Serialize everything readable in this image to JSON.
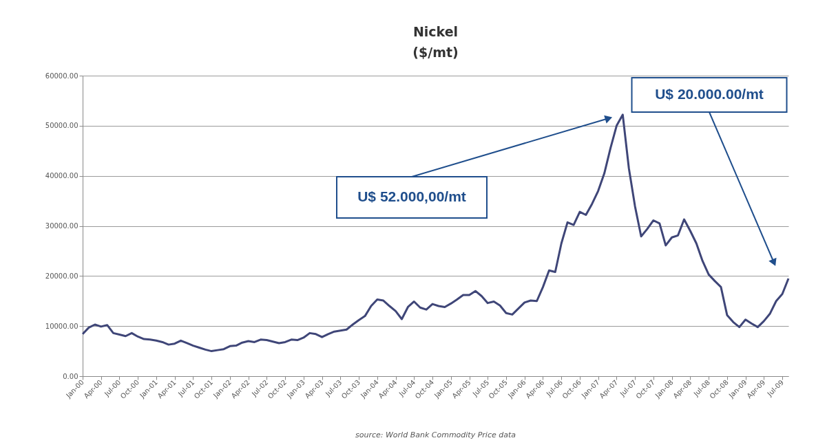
{
  "chart_data": {
    "type": "line",
    "title": "Nickel\n($/mt)",
    "categories": [
      "Jan-00",
      null,
      null,
      "Apr-00",
      null,
      null,
      "Jul-00",
      null,
      null,
      "Oct-00",
      null,
      null,
      "Jan-01",
      null,
      null,
      "Apr-01",
      null,
      null,
      "Jul-01",
      null,
      null,
      "Oct-01",
      null,
      null,
      "Jan-02",
      null,
      null,
      "Apr-02",
      null,
      null,
      "Jul-02",
      null,
      null,
      "Oct-02",
      null,
      null,
      "Jan-03",
      null,
      null,
      "Apr-03",
      null,
      null,
      "Jul-03",
      null,
      null,
      "Oct-03",
      null,
      null,
      "Jan-04",
      null,
      null,
      "Apr-04",
      null,
      null,
      "Jul-04",
      null,
      null,
      "Oct-04",
      null,
      null,
      "Jan-05",
      null,
      null,
      "Apr-05",
      null,
      null,
      "Jul-05",
      null,
      null,
      "Oct-05",
      null,
      null,
      "Jan-06",
      null,
      null,
      "Apr-06",
      null,
      null,
      "Jul-06",
      null,
      null,
      "Oct-06",
      null,
      null,
      "Jan-07",
      null,
      null,
      "Apr-07",
      null,
      null,
      "Jul-07",
      null,
      null,
      "Oct-07",
      null,
      null,
      "Jan-08",
      null,
      null,
      "Apr-08",
      null,
      null,
      "Jul-08",
      null,
      null,
      "Oct-08",
      null,
      null,
      "Jan-09",
      null,
      null,
      "Apr-09",
      null,
      null,
      "Jul-09",
      null
    ],
    "series": [
      {
        "color": "#3f4678",
        "values": [
          8400,
          9700,
          10300,
          9900,
          10200,
          8600,
          8300,
          8000,
          8600,
          7900,
          7400,
          7300,
          7100,
          6800,
          6300,
          6500,
          7100,
          6600,
          6100,
          5700,
          5300,
          5000,
          5200,
          5400,
          6000,
          6100,
          6700,
          7000,
          6800,
          7300,
          7200,
          6900,
          6600,
          6800,
          7300,
          7200,
          7700,
          8600,
          8400,
          7800,
          8400,
          8900,
          9100,
          9300,
          10300,
          11200,
          12000,
          14000,
          15300,
          15100,
          14000,
          13000,
          11400,
          13800,
          14900,
          13700,
          13300,
          14400,
          14000,
          13800,
          14500,
          15300,
          16200,
          16200,
          17000,
          16000,
          14600,
          14900,
          14100,
          12600,
          12300,
          13500,
          14700,
          15100,
          15000,
          17800,
          21100,
          20800,
          26500,
          30700,
          30200,
          32800,
          32200,
          34400,
          37000,
          40500,
          45500,
          50000,
          52200,
          41500,
          33900,
          27900,
          29400,
          31100,
          30500,
          26100,
          27700,
          28100,
          31300,
          29000,
          26500,
          23000,
          20300,
          19000,
          17800,
          12200,
          10800,
          9800,
          11300,
          10500,
          9800,
          11000,
          12500,
          15000,
          16400,
          19500
        ]
      }
    ],
    "ylim": [
      0,
      60000
    ],
    "yticks": [
      {
        "value": 0,
        "label": "0.00"
      },
      {
        "value": 10000,
        "label": "10000.00"
      },
      {
        "value": 20000,
        "label": "20000.00"
      },
      {
        "value": 30000,
        "label": "30000.00"
      },
      {
        "value": 40000,
        "label": "40000.00"
      },
      {
        "value": 50000,
        "label": "50000.00"
      },
      {
        "value": 60000,
        "label": "60000.00"
      }
    ],
    "grid": "y",
    "marker": "none",
    "line_style": "solid",
    "annotations": [
      "U$ 52.000,00/mt",
      "U$ 20.000.00/mt",
      "source: World Bank Commodity Price data"
    ]
  }
}
